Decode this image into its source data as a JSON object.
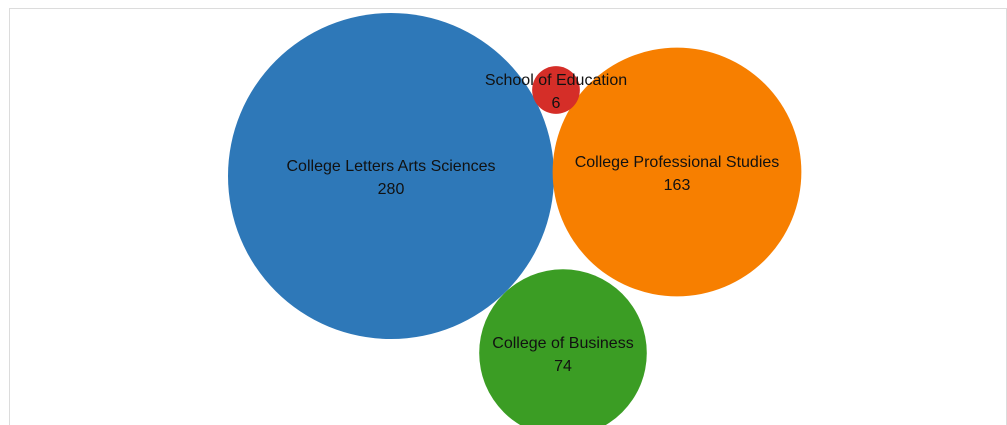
{
  "chart_data": {
    "type": "bubble",
    "bubbles": [
      {
        "name": "College Letters Arts Sciences",
        "value": 280,
        "color": "#2e78b8"
      },
      {
        "name": "College Professional Studies",
        "value": 163,
        "color": "#f77f00"
      },
      {
        "name": "College of Business",
        "value": 74,
        "color": "#3b9d24"
      },
      {
        "name": "School of Education",
        "value": 6,
        "color": "#d52e28"
      }
    ],
    "value_labels": [
      "280",
      "163",
      "74",
      "6"
    ]
  }
}
